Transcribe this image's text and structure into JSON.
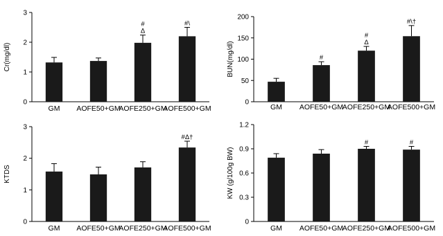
{
  "chart_data": [
    {
      "type": "bar",
      "ylabel": "Cr(mg/dl)",
      "categories": [
        "GM",
        "AOFE50+GM",
        "AOFE250+GM",
        "AOFE500+GM"
      ],
      "values": [
        1.32,
        1.37,
        1.98,
        2.2
      ],
      "errors": [
        0.17,
        0.1,
        0.26,
        0.3
      ],
      "annotations": [
        "",
        "",
        "#\nΔ",
        "#\\"
      ],
      "ylim": [
        0,
        3
      ],
      "yticks": [
        "0",
        "1",
        "2",
        "3"
      ],
      "bar_color": "#1a1a1a"
    },
    {
      "type": "bar",
      "ylabel": "BUN(mg/dl)",
      "categories": [
        "GM",
        "AOFE50+GM",
        "AOFE250+GM",
        "AOFE500+GM"
      ],
      "values": [
        47,
        86,
        120,
        154
      ],
      "errors": [
        8,
        8,
        10,
        25
      ],
      "annotations": [
        "",
        "#",
        "#\nΔ",
        "#\\†"
      ],
      "ylim": [
        0,
        200
      ],
      "yticks": [
        "0",
        "50",
        "100",
        "150",
        "200"
      ],
      "bar_color": "#1a1a1a"
    },
    {
      "type": "bar",
      "ylabel": "KTDS",
      "categories": [
        "GM",
        "AOFE50+GM",
        "AOFE250+GM",
        "AOFE500+GM"
      ],
      "values": [
        1.58,
        1.49,
        1.71,
        2.34
      ],
      "errors": [
        0.25,
        0.23,
        0.18,
        0.2
      ],
      "annotations": [
        "",
        "",
        "",
        "#Δ†"
      ],
      "ylim": [
        0,
        3
      ],
      "yticks": [
        "0",
        "1",
        "2",
        "3"
      ],
      "bar_color": "#1a1a1a"
    },
    {
      "type": "bar",
      "ylabel": "KW (g/100g BW)",
      "categories": [
        "GM",
        "AOFE50+GM",
        "AOFE250+GM",
        "AOFE500+GM"
      ],
      "values": [
        0.79,
        0.84,
        0.9,
        0.89
      ],
      "errors": [
        0.05,
        0.05,
        0.03,
        0.04
      ],
      "annotations": [
        "",
        "",
        "#",
        "#"
      ],
      "ylim": [
        0,
        1.2
      ],
      "yticks": [
        "0",
        "0.3",
        "0.6",
        "0.9",
        "1.2"
      ],
      "bar_color": "#1a1a1a"
    }
  ]
}
